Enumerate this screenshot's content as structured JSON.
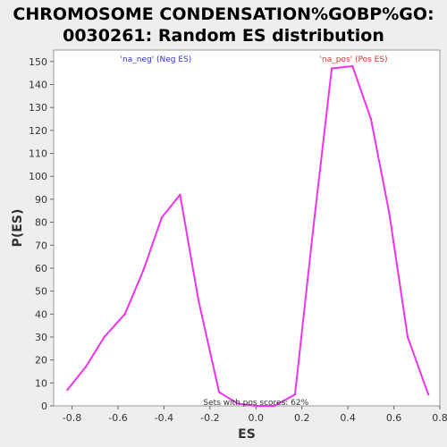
{
  "chart_data": {
    "type": "line",
    "title_lines": [
      "CHROMOSOME CONDENSATION%GOBP%GO:",
      "0030261: Random ES distribution"
    ],
    "xlabel": "ES",
    "ylabel": "P(ES)",
    "xlim": [
      -0.88,
      0.8
    ],
    "ylim": [
      0,
      155
    ],
    "xticks": [
      -0.8,
      -0.6,
      -0.4,
      -0.2,
      0.0,
      0.2,
      0.4,
      0.6,
      0.8
    ],
    "xtick_labels": [
      "-0.8",
      "-0.6",
      "-0.4",
      "-0.2",
      "0.0",
      "0.2",
      "0.4",
      "0.6",
      "0.8"
    ],
    "yticks": [
      0,
      10,
      20,
      30,
      40,
      50,
      60,
      70,
      80,
      90,
      100,
      110,
      120,
      130,
      140,
      150
    ],
    "ytick_labels": [
      "0",
      "10",
      "20",
      "30",
      "40",
      "50",
      "60",
      "70",
      "80",
      "90",
      "100",
      "110",
      "120",
      "130",
      "140",
      "150"
    ],
    "grid": false,
    "series": [
      {
        "color": "#ee33ee",
        "x": [
          -0.82,
          -0.74,
          -0.66,
          -0.57,
          -0.49,
          -0.41,
          -0.33,
          -0.25,
          -0.16,
          -0.08,
          0.0,
          0.08,
          0.17,
          0.25,
          0.33,
          0.42,
          0.5,
          0.58,
          0.66,
          0.75
        ],
        "y": [
          7,
          17,
          30,
          40,
          59,
          82,
          92,
          46,
          6,
          1,
          0,
          0,
          5,
          78,
          147,
          148,
          125,
          84,
          30,
          5
        ]
      }
    ],
    "annotations": [
      {
        "text": "'na_neg' (Neg ES)",
        "color": "#3333cc",
        "x": -0.435,
        "y": 150
      },
      {
        "text": "'na_pos' (Pos ES)",
        "color": "#dd3333",
        "x": 0.425,
        "y": 150
      },
      {
        "text": "Sets with pos scores: 62%",
        "color": "#333333",
        "x": 0.0,
        "y": 0
      }
    ]
  }
}
